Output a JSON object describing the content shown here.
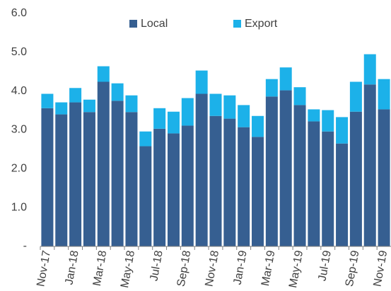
{
  "chart_data": {
    "type": "stacked_bar",
    "categories": [
      "Nov-17",
      null,
      "Jan-18",
      null,
      "Mar-18",
      null,
      "May-18",
      null,
      "Jul-18",
      null,
      "Sep-18",
      null,
      "Nov-18",
      null,
      "Jan-19",
      null,
      "Mar-19",
      null,
      "May-19",
      null,
      "Jul-19",
      null,
      "Sep-19",
      null,
      "Nov-19"
    ],
    "series": [
      {
        "name": "Local",
        "color": "#365f91",
        "values": [
          3.56,
          3.4,
          3.71,
          3.46,
          4.24,
          3.75,
          3.46,
          2.58,
          3.03,
          2.91,
          3.11,
          3.93,
          3.36,
          3.29,
          3.07,
          2.82,
          3.86,
          4.02,
          3.64,
          3.22,
          2.96,
          2.65,
          3.47,
          4.17,
          3.53
        ]
      },
      {
        "name": "Export",
        "color": "#1cb1e9",
        "values": [
          0.37,
          0.31,
          0.37,
          0.32,
          0.4,
          0.45,
          0.43,
          0.38,
          0.53,
          0.56,
          0.71,
          0.6,
          0.57,
          0.6,
          0.57,
          0.54,
          0.45,
          0.59,
          0.46,
          0.31,
          0.55,
          0.68,
          0.77,
          0.78,
          0.78
        ]
      }
    ],
    "ylim": [
      0,
      6
    ],
    "yticks": [
      {
        "value": 0,
        "label": "-"
      },
      {
        "value": 1,
        "label": "1.0"
      },
      {
        "value": 2,
        "label": "2.0"
      },
      {
        "value": 3,
        "label": "3.0"
      },
      {
        "value": 4,
        "label": "4.0"
      },
      {
        "value": 5,
        "label": "5.0"
      },
      {
        "value": 6,
        "label": "6.0"
      }
    ],
    "legend": "top"
  }
}
